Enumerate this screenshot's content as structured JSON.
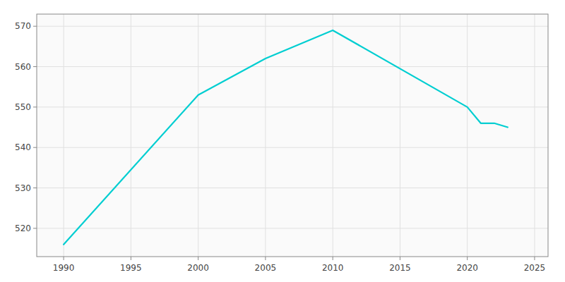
{
  "chart_data": {
    "type": "line",
    "x": [
      1990,
      2000,
      2005,
      2010,
      2020,
      2021,
      2022,
      2023
    ],
    "values": [
      516,
      553,
      562,
      569,
      550,
      546,
      546,
      545
    ],
    "color": "#00CED1",
    "xlim": [
      1988,
      2026
    ],
    "ylim": [
      513,
      573
    ],
    "xticks": [
      1990,
      1995,
      2000,
      2005,
      2010,
      2015,
      2020,
      2025
    ],
    "yticks": [
      520,
      530,
      540,
      550,
      560,
      570
    ],
    "grid": true
  }
}
